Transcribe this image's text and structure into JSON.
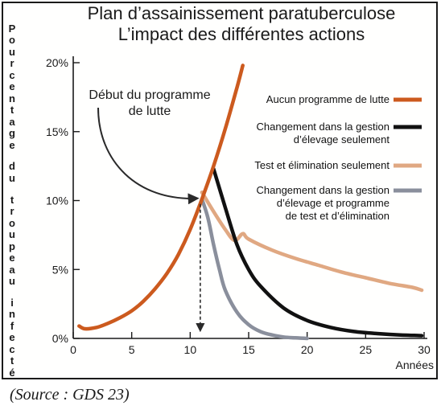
{
  "title_line1": "Plan d’assainissement paratuberculose",
  "title_line2": "L’impact des différentes actions",
  "source": "(Source : GDS 23)",
  "annotation": [
    "Début du programme",
    "de lutte"
  ],
  "colors": {
    "orange": "#cc5a1e",
    "black": "#111111",
    "peach": "#e0a882",
    "grey": "#8a8f9c"
  },
  "chart_data": {
    "type": "line",
    "xlabel": "Années",
    "ylabel": "Pourcentage du troupeau infecté",
    "xlim": [
      0,
      30
    ],
    "ylim": [
      0,
      20
    ],
    "x_ticks": [
      "0",
      "5",
      "10",
      "15",
      "20",
      "25",
      "30"
    ],
    "y_ticks": [
      "0%",
      "5%",
      "10%",
      "15%",
      "20%"
    ],
    "grid": false,
    "legend_position": "right",
    "series": [
      {
        "name": "Aucun programme de lutte",
        "color": "#cc5a1e",
        "x": [
          0.5,
          1,
          2,
          3,
          4,
          5,
          6,
          7,
          8,
          9,
          10,
          11,
          12,
          13,
          14,
          14.5
        ],
        "y": [
          0.9,
          0.7,
          0.8,
          1.1,
          1.5,
          2.0,
          2.7,
          3.6,
          4.7,
          6.1,
          7.9,
          10.1,
          12.5,
          15.2,
          18.2,
          19.8
        ]
      },
      {
        "name": "Changement dans la gestion d’élevage seulement",
        "color": "#111111",
        "x": [
          12,
          13,
          14,
          15,
          16,
          18,
          20,
          22,
          24,
          26,
          28,
          29.8
        ],
        "y": [
          12.3,
          9.5,
          6.8,
          5.0,
          3.8,
          2.2,
          1.3,
          0.8,
          0.5,
          0.35,
          0.25,
          0.2
        ]
      },
      {
        "name": "Test et élimination seulement",
        "color": "#e0a882",
        "x": [
          11,
          12,
          13,
          13.8,
          14.5,
          15,
          17,
          19,
          21,
          23,
          25,
          27,
          29,
          29.8
        ],
        "y": [
          10.6,
          9.2,
          7.9,
          7.1,
          7.6,
          7.2,
          6.4,
          5.8,
          5.3,
          4.8,
          4.4,
          4.0,
          3.7,
          3.5
        ]
      },
      {
        "name": "Changement dans la gestion d’élevage et programme de test et d’élimination",
        "color": "#8a8f9c",
        "x": [
          11,
          11.5,
          12,
          12.5,
          13,
          14,
          15,
          16,
          17,
          18,
          19,
          20
        ],
        "y": [
          10.1,
          8.8,
          6.8,
          5.0,
          3.5,
          1.9,
          1.0,
          0.5,
          0.25,
          0.1,
          0.04,
          0.0
        ]
      }
    ],
    "legend": [
      [
        "Aucun programme de lutte"
      ],
      [
        "Changement dans la gestion",
        "d’élevage seulement"
      ],
      [
        "Test et élimination seulement"
      ],
      [
        "Changement dans la gestion",
        "d’élevage et programme",
        "de test et d’élimination"
      ]
    ]
  }
}
